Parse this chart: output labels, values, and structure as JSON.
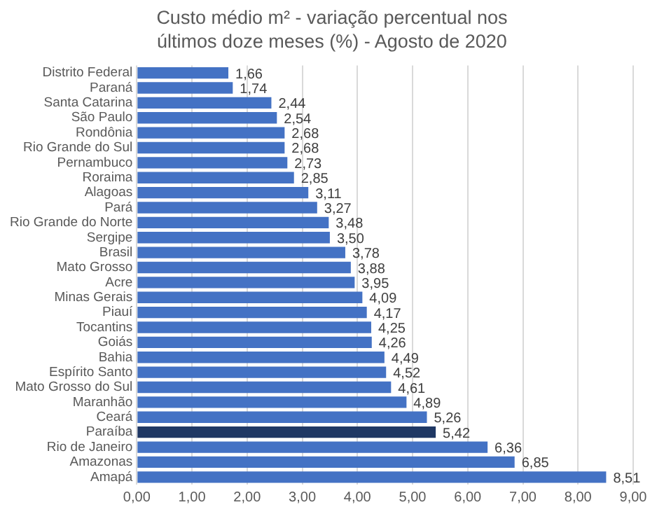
{
  "chart_data": {
    "type": "bar",
    "orientation": "horizontal",
    "title": "Custo médio m² - variação percentual nos últimos doze meses (%) - Agosto de 2020",
    "categories": [
      "Distrito Federal",
      "Paraná",
      "Santa Catarina",
      "São Paulo",
      "Rondônia",
      "Rio Grande do Sul",
      "Pernambuco",
      "Roraima",
      "Alagoas",
      "Pará",
      "Rio Grande do Norte",
      "Sergipe",
      "Brasil",
      "Mato Grosso",
      "Acre",
      "Minas Gerais",
      "Piauí",
      "Tocantins",
      "Goiás",
      "Bahia",
      "Espírito Santo",
      "Mato Grosso do Sul",
      "Maranhão",
      "Ceará",
      "Paraíba",
      "Rio de Janeiro",
      "Amazonas",
      "Amapá"
    ],
    "values": [
      1.66,
      1.74,
      2.44,
      2.54,
      2.68,
      2.68,
      2.73,
      2.85,
      3.11,
      3.27,
      3.48,
      3.5,
      3.78,
      3.88,
      3.95,
      4.09,
      4.17,
      4.25,
      4.26,
      4.49,
      4.52,
      4.61,
      4.89,
      5.26,
      5.42,
      6.36,
      6.85,
      8.51
    ],
    "value_labels": [
      "1,66",
      "1,74",
      "2,44",
      "2,54",
      "2,68",
      "2,68",
      "2,73",
      "2,85",
      "3,11",
      "3,27",
      "3,48",
      "3,50",
      "3,78",
      "3,88",
      "3,95",
      "4,09",
      "4,17",
      "4,25",
      "4,26",
      "4,49",
      "4,52",
      "4,61",
      "4,89",
      "5,26",
      "5,42",
      "6,36",
      "6,85",
      "8,51"
    ],
    "colors": [
      "#4472c4",
      "#4472c4",
      "#4472c4",
      "#4472c4",
      "#4472c4",
      "#4472c4",
      "#4472c4",
      "#4472c4",
      "#4472c4",
      "#4472c4",
      "#4472c4",
      "#4472c4",
      "#4472c4",
      "#4472c4",
      "#4472c4",
      "#4472c4",
      "#4472c4",
      "#4472c4",
      "#4472c4",
      "#4472c4",
      "#4472c4",
      "#4472c4",
      "#4472c4",
      "#4472c4",
      "#1f3864",
      "#4472c4",
      "#4472c4",
      "#4472c4"
    ],
    "xlim": [
      0,
      9
    ],
    "xticks": [
      {
        "value": 0,
        "label": "0,00"
      },
      {
        "value": 1,
        "label": "1,00"
      },
      {
        "value": 2,
        "label": "2,00"
      },
      {
        "value": 3,
        "label": "3,00"
      },
      {
        "value": 4,
        "label": "4,00"
      },
      {
        "value": 5,
        "label": "5,00"
      },
      {
        "value": 6,
        "label": "6,00"
      },
      {
        "value": 7,
        "label": "7,00"
      },
      {
        "value": 8,
        "label": "8,00"
      },
      {
        "value": 9,
        "label": "9,00"
      }
    ],
    "grid": "x"
  }
}
